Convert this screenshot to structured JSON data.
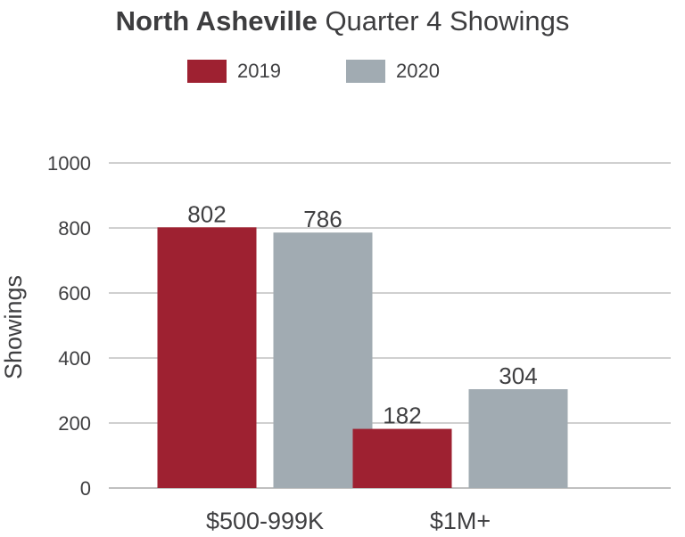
{
  "title": {
    "bold": "North Asheville",
    "rest": "Quarter 4 Showings"
  },
  "colors": {
    "series_2019": "#9e2131",
    "series_2020": "#a1abb2",
    "grid": "#b5b5b5",
    "text": "#3f3f41"
  },
  "chart_data": {
    "type": "bar",
    "categories": [
      "$500-999K",
      "$1M+"
    ],
    "series": [
      {
        "name": "2019",
        "values": [
          802,
          182
        ]
      },
      {
        "name": "2020",
        "values": [
          786,
          304
        ]
      }
    ],
    "data_labels": [
      [
        "802",
        "182"
      ],
      [
        "786",
        "304"
      ]
    ],
    "ylabel": "Showings",
    "xlabel": "",
    "ylim": [
      0,
      1000
    ],
    "yticks": [
      0,
      200,
      400,
      600,
      800,
      1000
    ],
    "grid": true,
    "legend": "top-center"
  }
}
